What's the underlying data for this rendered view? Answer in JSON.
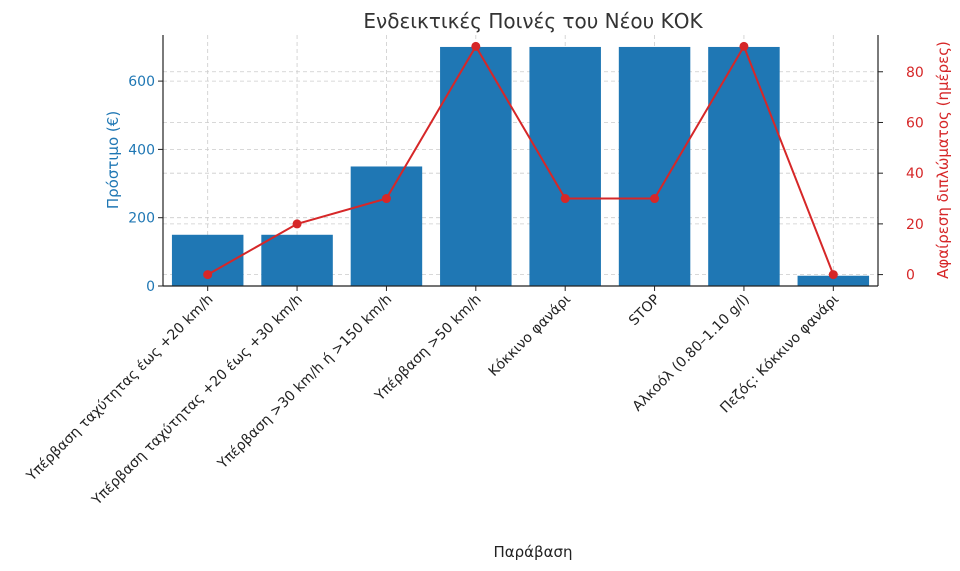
{
  "chart_data": {
    "type": "bar",
    "title": "Ενδεικτικές Ποινές του Νέου ΚΟΚ",
    "xlabel": "Παράβαση",
    "ylabel_left": "Πρόστιμο (€)",
    "ylabel_right": "Αφαίρεση διπλώματος (ημέρες)",
    "categories": [
      "Υπέρβαση ταχύτητας έως +20 km/h",
      "Υπέρβαση ταχύτητας +20 έως +30 km/h",
      "Υπέρβαση >30 km/h ή >150 km/h",
      "Υπέρβαση >50 km/h",
      "Κόκκινο φανάρι",
      "STOP",
      "Αλκοόλ (0.80–1.10 g/l)",
      "Πεζός: Κόκκινο φανάρι"
    ],
    "series": [
      {
        "name": "Πρόστιμο (€)",
        "type": "bar",
        "axis": "left",
        "color": "#1f77b4",
        "values": [
          150,
          150,
          350,
          700,
          700,
          700,
          700,
          30
        ]
      },
      {
        "name": "Αφαίρεση διπλώματος (ημέρες)",
        "type": "line",
        "axis": "right",
        "color": "#d62728",
        "values": [
          0,
          20,
          30,
          90,
          30,
          30,
          90,
          0
        ]
      }
    ],
    "ylim_left": [
      0,
      735
    ],
    "yticks_left": [
      0,
      200,
      400,
      600
    ],
    "ylim_right": [
      -4.5,
      94.5
    ],
    "yticks_right": [
      0,
      20,
      40,
      60,
      80
    ],
    "grid": true,
    "legend": "none"
  }
}
